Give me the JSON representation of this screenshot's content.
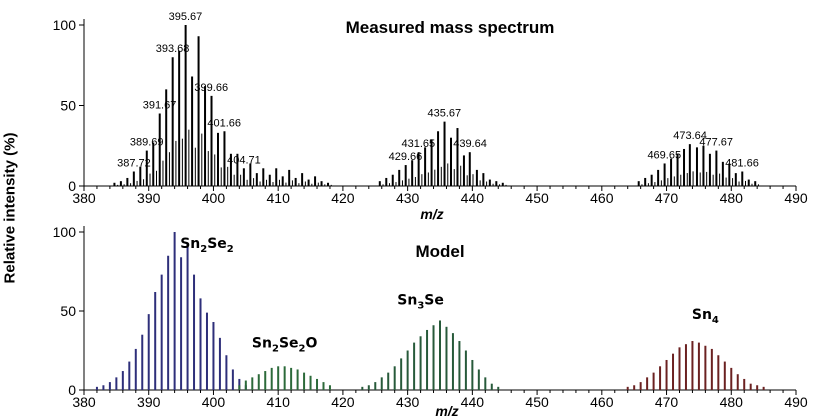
{
  "chart_data": [
    {
      "type": "bar",
      "title": "Measured mass spectrum",
      "xlabel": "m/z",
      "ylabel": "Relative intensity (%)",
      "xlim": [
        380,
        490
      ],
      "ylim": [
        0,
        100
      ],
      "xticks": [
        380,
        390,
        400,
        410,
        420,
        430,
        440,
        450,
        460,
        470,
        480,
        490
      ],
      "yticks": [
        0,
        50,
        100
      ],
      "grid": false,
      "peak_labels": [
        "387.72",
        "389.69",
        "391.67",
        "393.68",
        "395.67",
        "399.66",
        "401.66",
        "404.71",
        "429.66",
        "431.65",
        "435.67",
        "439.64",
        "469.65",
        "473.64",
        "477.67",
        "481.66"
      ],
      "series": [
        {
          "color": "#000000",
          "x": [
            384.7,
            385.7,
            386.7,
            387.7,
            388.7,
            389.7,
            390.7,
            391.7,
            392.7,
            393.7,
            394.7,
            395.7,
            396.7,
            397.7,
            398.7,
            399.7,
            400.7,
            401.7,
            402.7,
            403.7,
            404.7,
            405.7,
            406.7,
            407.7,
            408.7,
            409.7,
            410.7,
            411.7,
            412.7,
            413.7,
            414.7,
            415.7,
            416.7,
            417.7,
            425.7,
            426.7,
            427.7,
            428.7,
            429.7,
            430.7,
            431.7,
            432.7,
            433.7,
            434.7,
            435.7,
            436.7,
            437.7,
            438.7,
            439.6,
            440.7,
            441.7,
            442.7,
            443.7,
            444.7,
            465.7,
            466.7,
            467.7,
            468.7,
            469.7,
            470.7,
            471.7,
            472.7,
            473.6,
            474.7,
            475.7,
            476.7,
            477.7,
            478.7,
            479.7,
            480.7,
            481.7,
            482.7,
            483.7
          ],
          "values": [
            2,
            3,
            5,
            9,
            12,
            22,
            27,
            45,
            60,
            80,
            84,
            100,
            68,
            93,
            62,
            56,
            33,
            34,
            20,
            20,
            11,
            14,
            8,
            11,
            7,
            11,
            6,
            10,
            5,
            8,
            4,
            6,
            3,
            2,
            3,
            5,
            7,
            10,
            13,
            16,
            21,
            24,
            29,
            34,
            40,
            30,
            36,
            19,
            21,
            10,
            8,
            4,
            3,
            2,
            3,
            5,
            7,
            10,
            14,
            17,
            20,
            23,
            26,
            24,
            25,
            20,
            22,
            15,
            14,
            8,
            9,
            4,
            3
          ]
        }
      ]
    },
    {
      "type": "bar",
      "title": "Model",
      "xlabel": "m/z",
      "ylabel": "Relative intensity (%)",
      "xlim": [
        380,
        490
      ],
      "ylim": [
        0,
        100
      ],
      "xticks": [
        380,
        390,
        400,
        410,
        420,
        430,
        440,
        450,
        460,
        470,
        480,
        490
      ],
      "yticks": [
        0,
        50,
        100
      ],
      "grid": false,
      "series": [
        {
          "name": "Sn2Se2",
          "color": "#2e2f7a",
          "x": [
            382,
            383,
            384,
            385,
            386,
            387,
            388,
            389,
            390,
            391,
            392,
            393,
            394,
            395,
            396,
            397,
            398,
            399,
            400,
            401,
            402,
            403,
            404,
            405
          ],
          "values": [
            2,
            3,
            5,
            8,
            12,
            18,
            26,
            35,
            48,
            62,
            73,
            85,
            100,
            84,
            93,
            73,
            58,
            49,
            43,
            33,
            22,
            13,
            7,
            3
          ]
        },
        {
          "name": "Sn2Se2O",
          "color": "#2c6a3a",
          "x": [
            404,
            405,
            406,
            407,
            408,
            409,
            410,
            411,
            412,
            413,
            414,
            415,
            416,
            417,
            418
          ],
          "values": [
            3,
            6,
            8,
            10,
            12,
            14,
            15,
            15,
            14,
            13,
            11,
            9,
            7,
            5,
            3
          ]
        },
        {
          "name": "Sn3Se",
          "color": "#275a3a",
          "x": [
            423,
            424,
            425,
            426,
            427,
            428,
            429,
            430,
            431,
            432,
            433,
            434,
            435,
            436,
            437,
            438,
            439,
            440,
            441,
            442,
            443,
            444
          ],
          "values": [
            2,
            3,
            5,
            8,
            11,
            15,
            20,
            25,
            30,
            34,
            38,
            41,
            44,
            40,
            36,
            31,
            25,
            19,
            13,
            8,
            4,
            2
          ]
        },
        {
          "name": "Sn4",
          "color": "#6b2121",
          "x": [
            464,
            465,
            466,
            467,
            468,
            469,
            470,
            471,
            472,
            473,
            474,
            475,
            476,
            477,
            478,
            479,
            480,
            481,
            482,
            483,
            484,
            485
          ],
          "values": [
            2,
            3,
            5,
            8,
            11,
            15,
            19,
            23,
            27,
            29,
            31,
            30,
            28,
            26,
            22,
            18,
            14,
            10,
            7,
            4,
            3,
            2
          ]
        }
      ],
      "annotations": [
        {
          "base": "Sn",
          "sub1": "2",
          "mid": "Se",
          "sub2": "2",
          "tail": "",
          "x": 399,
          "y": 90
        },
        {
          "base": "Sn",
          "sub1": "2",
          "mid": "Se",
          "sub2": "2",
          "tail": "O",
          "x": 411,
          "y": 27
        },
        {
          "base": "Sn",
          "sub1": "3",
          "mid": "Se",
          "sub2": "",
          "tail": "",
          "x": 432,
          "y": 54
        },
        {
          "base": "Sn",
          "sub1": "4",
          "mid": "",
          "sub2": "",
          "tail": "",
          "x": 476,
          "y": 45
        }
      ]
    }
  ]
}
